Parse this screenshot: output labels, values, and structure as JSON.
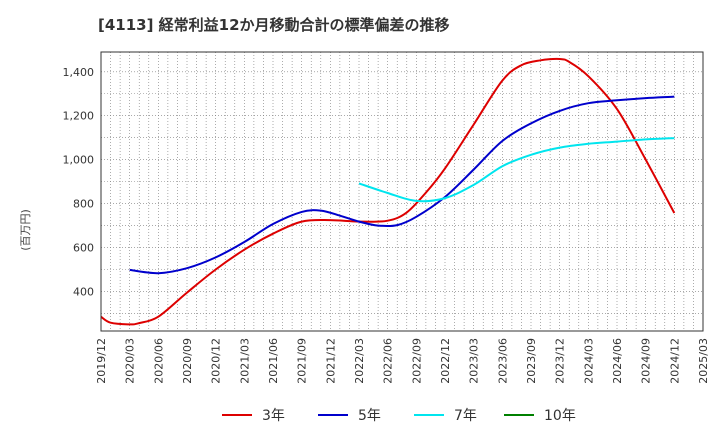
{
  "title": "[4113]  経常利益12か月移動合計の標準偏差の推移",
  "chart_data": {
    "type": "line",
    "title": "[4113]  経常利益12か月移動合計の標準偏差の推移",
    "ylabel": "(百万円)",
    "xlabel": "",
    "x_ticks": [
      "2019/12",
      "2020/03",
      "2020/06",
      "2020/09",
      "2020/12",
      "2021/03",
      "2021/06",
      "2021/09",
      "2021/12",
      "2022/03",
      "2022/06",
      "2022/09",
      "2022/12",
      "2023/03",
      "2023/06",
      "2023/09",
      "2023/12",
      "2024/03",
      "2024/06",
      "2024/09",
      "2024/12",
      "2025/03"
    ],
    "y_ticks": [
      400,
      600,
      800,
      1000,
      1200,
      1400
    ],
    "ylim": [
      220,
      1490
    ],
    "grid": true,
    "legend_position": "bottom",
    "series": [
      {
        "name": "3年",
        "color": "#dd0000",
        "points": [
          [
            "2019/12",
            285
          ],
          [
            "2020/01",
            258
          ],
          [
            "2020/03",
            250
          ],
          [
            "2020/04",
            256
          ],
          [
            "2020/06",
            285
          ],
          [
            "2020/09",
            395
          ],
          [
            "2020/12",
            500
          ],
          [
            "2021/03",
            590
          ],
          [
            "2021/06",
            663
          ],
          [
            "2021/09",
            718
          ],
          [
            "2021/12",
            725
          ],
          [
            "2022/03",
            718
          ],
          [
            "2022/06",
            722
          ],
          [
            "2022/08",
            760
          ],
          [
            "2022/10",
            850
          ],
          [
            "2022/12",
            960
          ],
          [
            "2023/03",
            1160
          ],
          [
            "2023/06",
            1360
          ],
          [
            "2023/08",
            1430
          ],
          [
            "2023/10",
            1452
          ],
          [
            "2023/12",
            1458
          ],
          [
            "2024/01",
            1445
          ],
          [
            "2024/03",
            1380
          ],
          [
            "2024/06",
            1230
          ],
          [
            "2024/09",
            1000
          ],
          [
            "2024/12",
            757
          ]
        ]
      },
      {
        "name": "5年",
        "color": "#0000cc",
        "points": [
          [
            "2020/03",
            498
          ],
          [
            "2020/06",
            483
          ],
          [
            "2020/09",
            506
          ],
          [
            "2020/12",
            555
          ],
          [
            "2021/03",
            625
          ],
          [
            "2021/06",
            707
          ],
          [
            "2021/09",
            762
          ],
          [
            "2021/11",
            768
          ],
          [
            "2022/01",
            745
          ],
          [
            "2022/03",
            718
          ],
          [
            "2022/05",
            700
          ],
          [
            "2022/07",
            702
          ],
          [
            "2022/09",
            740
          ],
          [
            "2022/12",
            830
          ],
          [
            "2023/03",
            955
          ],
          [
            "2023/06",
            1085
          ],
          [
            "2023/09",
            1165
          ],
          [
            "2023/12",
            1222
          ],
          [
            "2024/03",
            1257
          ],
          [
            "2024/06",
            1270
          ],
          [
            "2024/09",
            1280
          ],
          [
            "2024/12",
            1287
          ]
        ]
      },
      {
        "name": "7年",
        "color": "#00e5ee",
        "points": [
          [
            "2022/03",
            892
          ],
          [
            "2022/06",
            848
          ],
          [
            "2022/09",
            812
          ],
          [
            "2022/12",
            825
          ],
          [
            "2023/03",
            885
          ],
          [
            "2023/06",
            970
          ],
          [
            "2023/09",
            1022
          ],
          [
            "2023/12",
            1055
          ],
          [
            "2024/03",
            1072
          ],
          [
            "2024/06",
            1082
          ],
          [
            "2024/09",
            1092
          ],
          [
            "2024/12",
            1098
          ]
        ]
      },
      {
        "name": "10年",
        "color": "#008000",
        "points": []
      }
    ]
  }
}
